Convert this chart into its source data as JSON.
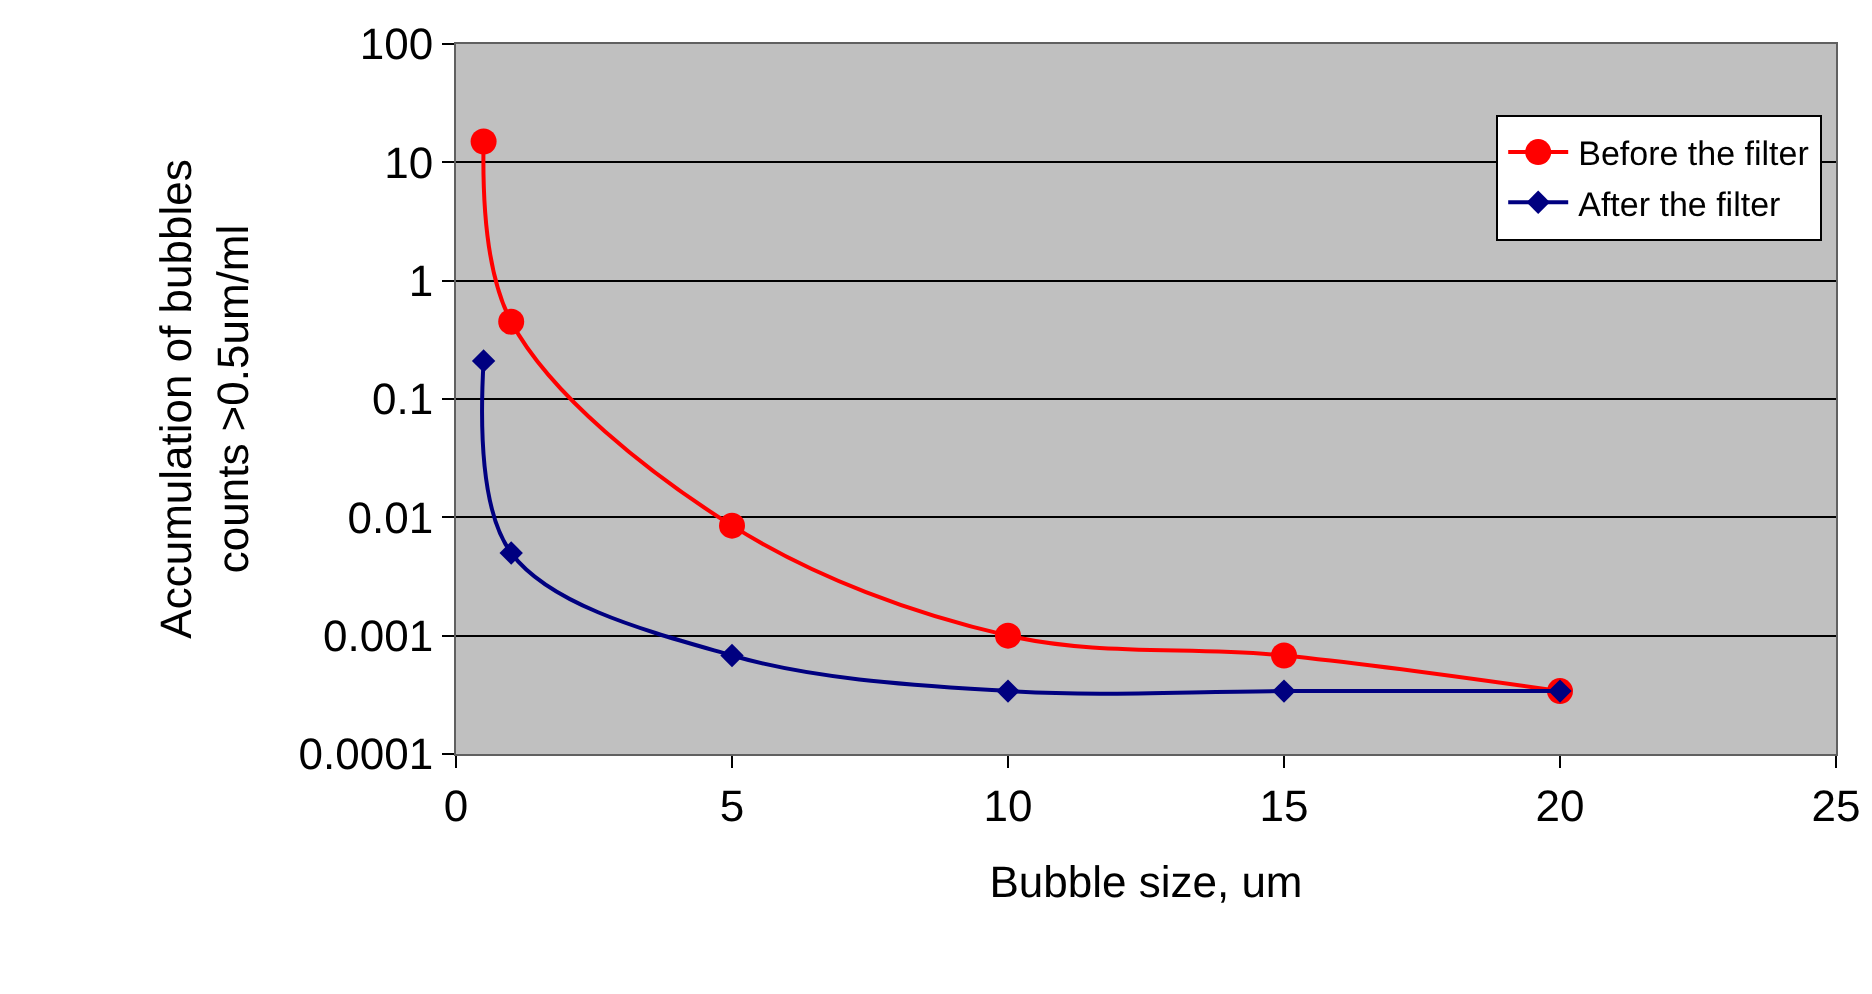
{
  "chart_data": {
    "type": "line",
    "xlabel": "Bubble size, um",
    "ylabel": "Accumulation of bubbles\ncounts >0.5um/ml",
    "x": [
      0.5,
      1,
      5,
      10,
      15,
      20
    ],
    "series": [
      {
        "name": "Before the filter",
        "color": "#ff0000",
        "marker": "circle",
        "values": [
          15,
          0.45,
          0.0085,
          0.001,
          0.00068,
          0.00034
        ]
      },
      {
        "name": "After the filter",
        "color": "#000080",
        "marker": "diamond",
        "values": [
          0.21,
          0.005,
          0.00068,
          0.00034,
          0.00034,
          0.00034
        ]
      }
    ],
    "xlim": [
      0,
      25
    ],
    "xticks": [
      0,
      5,
      10,
      15,
      20,
      25
    ],
    "ylim": [
      0.0001,
      100
    ],
    "yticks": [
      0.0001,
      0.001,
      0.01,
      0.1,
      1,
      10,
      100
    ],
    "log": "y",
    "grid": "y",
    "legend": "top right"
  }
}
